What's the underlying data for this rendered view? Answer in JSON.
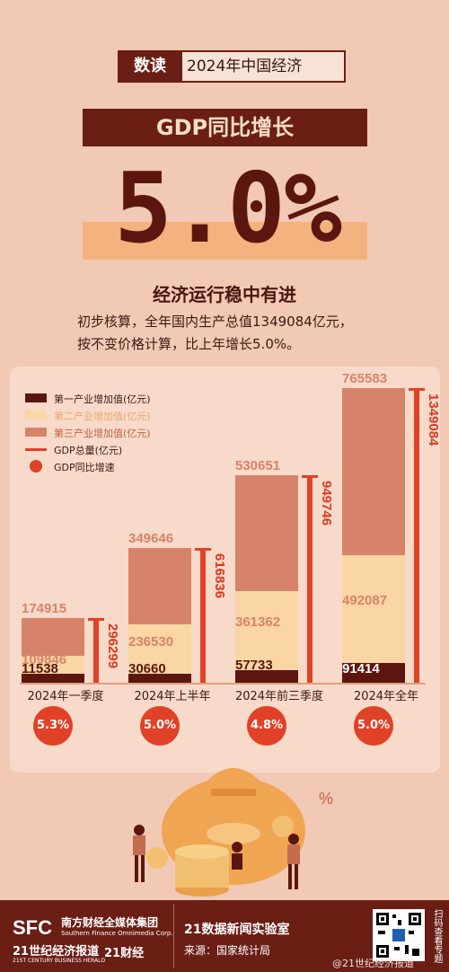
{
  "header": {
    "tag": "数读",
    "title": "2024年中国经济",
    "banner": "GDP同比增长",
    "big_value": "5.0%",
    "subhead": "经济运行稳中有进",
    "desc_line1": "初步核算，全年国内生产总值1349084亿元，",
    "desc_line2": "按不变价格计算，比上年增长5.0%。"
  },
  "legend": {
    "primary": "第一产业增加值(亿元)",
    "secondary": "第二产业增加值(亿元)",
    "tertiary": "第三产业增加值(亿元)",
    "total": "GDP总量(亿元)",
    "growth": "GDP同比增速"
  },
  "colors": {
    "primary": "#5b170f",
    "secondary": "#f9d6a4",
    "tertiary": "#d7836a",
    "total": "#e04127",
    "growth": "#e04127"
  },
  "chart_data": {
    "type": "bar",
    "categories": [
      "2024年一季度",
      "2024年上半年",
      "2024年前三季度",
      "2024年全年"
    ],
    "series": [
      {
        "name": "第一产业增加值(亿元)",
        "values": [
          11538,
          30660,
          57733,
          91414
        ]
      },
      {
        "name": "第二产业增加值(亿元)",
        "values": [
          109846,
          236530,
          361362,
          492087
        ]
      },
      {
        "name": "第三产业增加值(亿元)",
        "values": [
          174915,
          349646,
          530651,
          765583
        ]
      },
      {
        "name": "GDP总量(亿元)",
        "values": [
          296299,
          616836,
          949746,
          1349084
        ]
      },
      {
        "name": "GDP同比增速",
        "values": [
          "5.3%",
          "5.0%",
          "4.8%",
          "5.0%"
        ]
      }
    ]
  },
  "footer": {
    "sfc": "SFC",
    "group_cn": "南方财经全媒体集团",
    "group_en": "Southern Finance Omnimedia Corp.",
    "paper_cn": "21世纪经济报道",
    "paper_en": "21ST CENTURY BUSINESS HERALD",
    "brand": "21财经",
    "lab": "21数据新闻实验室",
    "source": "来源：国家统计局",
    "scan": "扫码查看专题",
    "watermark": "@21世纪经济报道"
  }
}
